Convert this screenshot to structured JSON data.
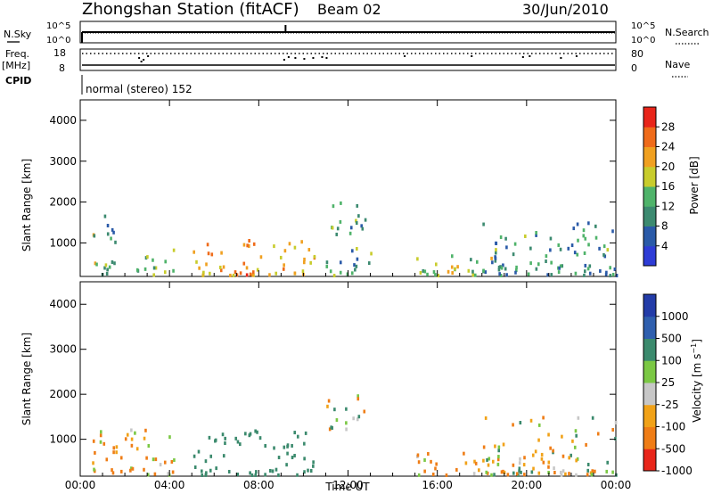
{
  "header": {
    "station": "Zhongshan Station (fitACF)",
    "beam": "Beam 02",
    "date": "30/Jun/2010"
  },
  "side_labels": {
    "nsky": "N.Sky",
    "freq": "Freq.",
    "freq_unit": "[MHz]",
    "cpid": "CPID",
    "nsearch": "N.Search",
    "nave": "Nave",
    "cpid_text": "normal (stereo) 152"
  },
  "colors": {
    "axis": "#000000",
    "grid": "#000000",
    "background": "#ffffff",
    "power_scale": [
      "#2e3cd6",
      "#2a5aa8",
      "#3c8a70",
      "#4fb36a",
      "#c8cc2c",
      "#f0a020",
      "#ef6b1a",
      "#e8251a"
    ],
    "velocity_scale": [
      "#233ca8",
      "#2f5fae",
      "#3b8a6d",
      "#7bc844",
      "#c7c7c7",
      "#f1a218",
      "#ef7d16",
      "#e8261a"
    ]
  },
  "chart_data": [
    {
      "type": "line",
      "name": "housekeeping-noise",
      "left_axis": {
        "label": "N.Sky",
        "ticks": [
          "10^5",
          "10^0"
        ]
      },
      "right_axis": {
        "label": "N.Search",
        "ticks": [
          "10^5",
          "10^0"
        ]
      },
      "x": {
        "range": [
          0,
          24
        ],
        "unit": "hours UT"
      },
      "series": [
        {
          "name": "N.Sky",
          "style": "solid",
          "values_level": "low, flat with spike near 09:00"
        },
        {
          "name": "N.Search",
          "style": "dotted"
        }
      ]
    },
    {
      "type": "line",
      "name": "housekeeping-freq",
      "left_axis": {
        "label": "Freq. [MHz]",
        "ticks": [
          18,
          8
        ]
      },
      "right_axis": {
        "label": "Nave",
        "ticks": [
          80,
          0
        ]
      },
      "x": {
        "range": [
          0,
          24
        ],
        "unit": "hours UT"
      },
      "series": [
        {
          "name": "Freq",
          "style": "dotted",
          "level": 18
        },
        {
          "name": "Nave",
          "style": "solid",
          "level": 0
        }
      ]
    },
    {
      "type": "heatmap",
      "name": "power",
      "xlabel": "",
      "ylabel": "Slant Range [km]",
      "yticks": [
        1000,
        2000,
        3000,
        4000
      ],
      "ylim": [
        180,
        4500
      ],
      "xlim": [
        0,
        24
      ],
      "colorbar": {
        "label": "Power [dB]",
        "ticks": [
          4,
          8,
          12,
          16,
          20,
          24,
          28
        ],
        "range": [
          0,
          30
        ]
      },
      "scatter_regions": [
        {
          "t": [
            1.0,
            1.8
          ],
          "r": [
            1000,
            1800
          ],
          "mean_level": 8
        },
        {
          "t": [
            0.5,
            1.5
          ],
          "r": [
            200,
            1300
          ],
          "mean_level": 14
        },
        {
          "t": [
            2.5,
            4.2
          ],
          "r": [
            200,
            900
          ],
          "mean_level": 12
        },
        {
          "t": [
            5.0,
            10.5
          ],
          "r": [
            200,
            1100
          ],
          "mean_level": 22
        },
        {
          "t": [
            11.0,
            12.8
          ],
          "r": [
            1200,
            2000
          ],
          "mean_level": 10
        },
        {
          "t": [
            11.0,
            13.0
          ],
          "r": [
            200,
            900
          ],
          "mean_level": 12
        },
        {
          "t": [
            15.0,
            18.5
          ],
          "r": [
            200,
            800
          ],
          "mean_level": 16
        },
        {
          "t": [
            18.0,
            24.0
          ],
          "r": [
            200,
            1500
          ],
          "mean_level": 9
        }
      ]
    },
    {
      "type": "heatmap",
      "name": "velocity",
      "xlabel": "Time UT",
      "ylabel": "Slant Range [km]",
      "yticks": [
        1000,
        2000,
        3000,
        4000
      ],
      "ylim": [
        180,
        4500
      ],
      "xlim": [
        0,
        24
      ],
      "xticks": [
        "00:00",
        "04:00",
        "08:00",
        "12:00",
        "16:00",
        "20:00",
        "00:00"
      ],
      "colorbar": {
        "label": "Velocity [m s^-1]",
        "ticks": [
          1000,
          500,
          100,
          25,
          -25,
          -100,
          -500,
          -1000
        ]
      },
      "scatter_regions": [
        {
          "t": [
            0.5,
            4.2
          ],
          "r": [
            200,
            1300
          ],
          "mean_velocity": -100
        },
        {
          "t": [
            5.0,
            10.5
          ],
          "r": [
            200,
            1200
          ],
          "mean_velocity": 300
        },
        {
          "t": [
            11.0,
            12.8
          ],
          "r": [
            1200,
            2000
          ],
          "mean_velocity": 0
        },
        {
          "t": [
            15.0,
            18.5
          ],
          "r": [
            200,
            800
          ],
          "mean_velocity": -100
        },
        {
          "t": [
            18.0,
            24.0
          ],
          "r": [
            200,
            1500
          ],
          "mean_velocity": 0
        }
      ]
    }
  ]
}
